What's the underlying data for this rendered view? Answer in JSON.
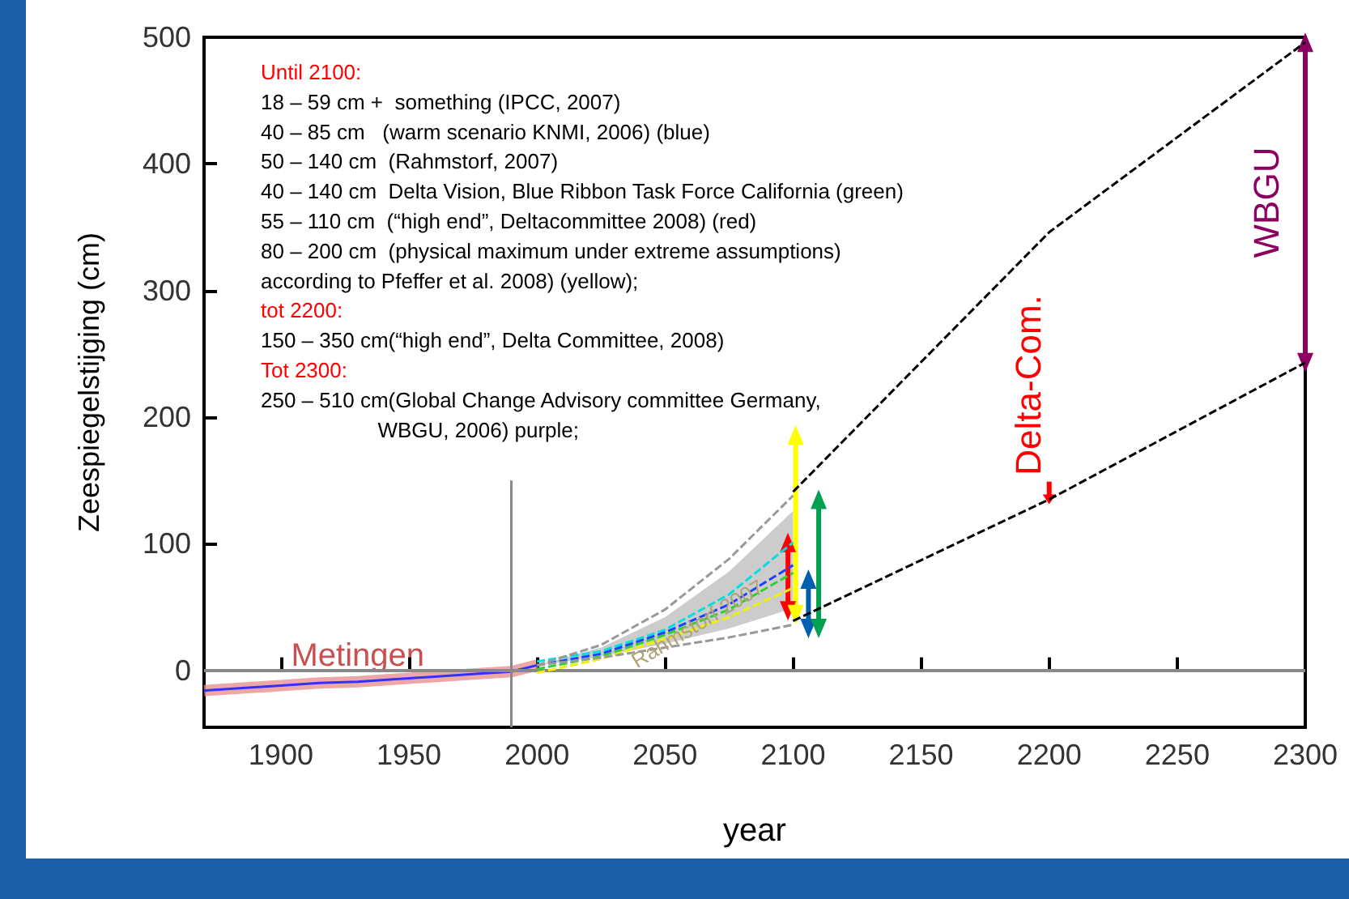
{
  "chart_data": {
    "type": "line",
    "xlabel": "year",
    "ylabel": "Zeespiegelstijging (cm)",
    "xlim": [
      1870,
      2300
    ],
    "xticks": [
      1900,
      1950,
      2000,
      2050,
      2100,
      2150,
      2200,
      2250,
      2300
    ],
    "ylim": [
      -45,
      500
    ],
    "yticks": [
      0,
      100,
      200,
      300,
      400,
      500
    ],
    "grid": false,
    "legend": false,
    "series": [
      {
        "name": "Metingen",
        "color": "#e88a8a",
        "x": [
          1870,
          1885,
          1900,
          1915,
          1930,
          1945,
          1960,
          1975,
          1990,
          2000
        ],
        "values": [
          -16,
          -14,
          -12,
          -10,
          -9,
          -7,
          -5,
          -3,
          -1,
          4
        ]
      },
      {
        "color": "#3030ff",
        "x": [
          1870,
          1885,
          1900,
          1915,
          1930,
          1945,
          1960,
          1975,
          1990,
          2000
        ],
        "values": [
          -16,
          -14,
          -12,
          -10,
          -9,
          -7,
          -5,
          -3,
          -1,
          4
        ],
        "line_style": "solid"
      },
      {
        "color": "#999999",
        "x": [
          2000,
          2025,
          2050,
          2075,
          2100
        ],
        "values": [
          4,
          20,
          48,
          88,
          138
        ],
        "line_style": "dashed"
      },
      {
        "color": "#999999",
        "x": [
          2000,
          2025,
          2050,
          2075,
          2100
        ],
        "values": [
          4,
          10,
          18,
          26,
          36
        ],
        "line_style": "dashed"
      },
      {
        "name": "Rahmstorf 2007",
        "color": "#2040ff",
        "x": [
          2000,
          2025,
          2050,
          2075,
          2100
        ],
        "values": [
          4,
          13,
          30,
          52,
          83
        ],
        "lower": [
          4,
          11,
          21,
          33,
          49
        ],
        "upper": [
          4,
          18,
          42,
          78,
          126
        ],
        "line_style": "dashed"
      },
      {
        "color": "#00e0e0",
        "x": [
          2000,
          2025,
          2050,
          2075,
          2100
        ],
        "values": [
          7,
          15,
          32,
          60,
          101
        ],
        "line_style": "dashed"
      },
      {
        "color": "#30d030",
        "x": [
          2000,
          2025,
          2050,
          2075,
          2100
        ],
        "values": [
          1,
          11,
          28,
          48,
          77
        ],
        "line_style": "dashed"
      },
      {
        "color": "#f0f000",
        "x": [
          2000,
          2025,
          2050,
          2075,
          2100
        ],
        "values": [
          -2,
          9,
          25,
          42,
          65
        ],
        "line_style": "dashed"
      },
      {
        "color": "#000000",
        "x": [
          2100,
          2200,
          2300
        ],
        "values": [
          141,
          346,
          496
        ],
        "line_style": "dashed"
      },
      {
        "color": "#000000",
        "x": [
          2100,
          2200,
          2300
        ],
        "values": [
          39,
          135,
          243
        ],
        "line_style": "dashed"
      },
      {
        "color": "#ff0000",
        "x": [
          2098,
          2098
        ],
        "values": [
          47,
          101
        ],
        "marker": "triangle"
      },
      {
        "color": "#ffff00",
        "x": [
          2101,
          2101
        ],
        "values": [
          44,
          186
        ],
        "marker": "triangle"
      },
      {
        "color": "#0060b0",
        "x": [
          2106,
          2106
        ],
        "values": [
          33,
          72
        ],
        "marker": "triangle"
      },
      {
        "color": "#00a050",
        "x": [
          2110,
          2110
        ],
        "values": [
          33,
          135
        ],
        "marker": "triangle"
      },
      {
        "name": "WBGU",
        "color": "#8b0060",
        "x": [
          2300,
          2300
        ],
        "values": [
          243,
          496
        ],
        "marker": "triangle"
      },
      {
        "name": "Delta-Com.",
        "color": "#ff0000",
        "x": [
          2200,
          2200
        ],
        "values": [
          149,
          135
        ],
        "marker": "triangle"
      },
      {
        "color": "#888888",
        "x": [
          1990,
          1990
        ],
        "values": [
          -45,
          150
        ],
        "line_style": "solid"
      }
    ],
    "ref_lines": [
      {
        "axis": "y",
        "value": 0,
        "color": "#888888"
      }
    ],
    "annotations": [
      "Until 2100:",
      "18 – 59 cm +  something (IPCC, 2007)",
      "40 – 85 cm   (warm scenario KNMI, 2006) (blue)",
      "50 – 140 cm  (Rahmstorf, 2007)",
      "40 – 140 cm  Delta Vision, Blue Ribbon Task Force California (green)",
      "55 – 110 cm  (“high end”, Deltacommittee 2008) (red)",
      "80 – 200 cm  (physical maximum under extreme assumptions)",
      "according to Pfeffer et al. 2008) (yellow);",
      "tot 2200:",
      "150 – 350 cm(“high end”, Delta Committee, 2008)",
      "Tot 2300:",
      "250 – 510 cm(Global Change Advisory committee Germany,",
      "                    WBGU, 2006) purple;"
    ]
  }
}
